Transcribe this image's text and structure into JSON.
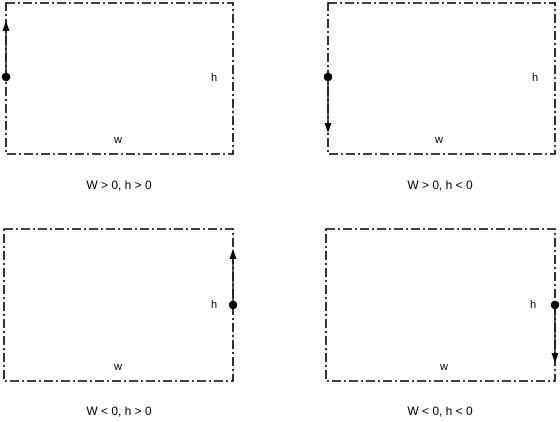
{
  "panels": [
    {
      "w_label": "w",
      "h_label": "h",
      "caption": "W > 0, h > 0",
      "origin_side": "left",
      "arrow_direction": "up"
    },
    {
      "w_label": "w",
      "h_label": "h",
      "caption": "W > 0, h < 0",
      "origin_side": "left",
      "arrow_direction": "down"
    },
    {
      "w_label": "w",
      "h_label": "h",
      "caption": "W < 0, h > 0",
      "origin_side": "right",
      "arrow_direction": "up"
    },
    {
      "w_label": "w",
      "h_label": "h",
      "caption": "W < 0, h < 0",
      "origin_side": "right",
      "arrow_direction": "down"
    }
  ],
  "colors": {
    "stroke": "#000000",
    "background": "#ffffff"
  }
}
